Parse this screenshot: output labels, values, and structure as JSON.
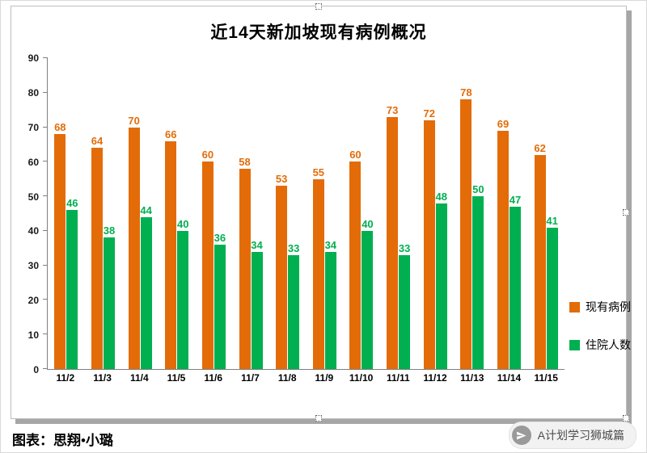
{
  "page": {
    "footer_credit": "图表：思翔•小璐",
    "watermark": {
      "text": "A计划学习狮城篇",
      "icon": "paper-plane-icon"
    }
  },
  "chart_data": {
    "type": "bar",
    "title": "近14天新加坡现有病例概况",
    "categories": [
      "11/2",
      "11/3",
      "11/4",
      "11/5",
      "11/6",
      "11/7",
      "11/8",
      "11/9",
      "11/10",
      "11/11",
      "11/12",
      "11/13",
      "11/14",
      "11/15"
    ],
    "series": [
      {
        "name": "现有病例",
        "color": "#E36C09",
        "values": [
          68,
          64,
          70,
          66,
          60,
          58,
          53,
          55,
          60,
          73,
          72,
          78,
          69,
          62
        ]
      },
      {
        "name": "住院人数",
        "color": "#00B050",
        "values": [
          46,
          38,
          44,
          40,
          36,
          34,
          33,
          34,
          40,
          33,
          48,
          50,
          47,
          41
        ]
      }
    ],
    "ylim": [
      0,
      90
    ],
    "yticks": [
      0,
      10,
      20,
      30,
      40,
      50,
      60,
      70,
      80,
      90
    ],
    "grid": false,
    "legend_position": "right",
    "data_labels": true,
    "axis_color": "#808080"
  }
}
